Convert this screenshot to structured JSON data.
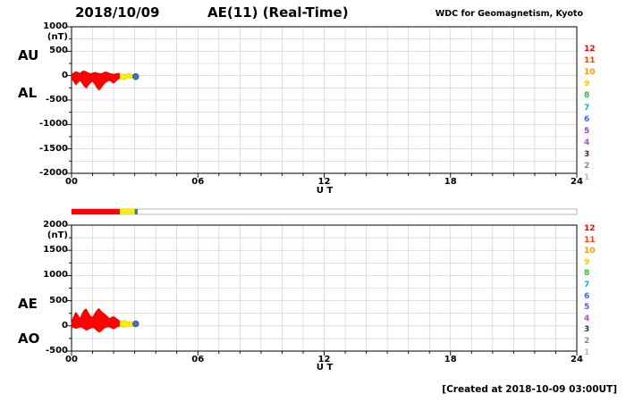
{
  "header": {
    "date": "2018/10/09",
    "title": "AE(11) (Real-Time)",
    "credit": "WDC for Geomagnetism, Kyoto"
  },
  "footer": {
    "created": "[Created at 2018-10-09 03:00UT]"
  },
  "panels": {
    "top": {
      "label_upper": "AU",
      "label_lower": "AL",
      "unit": "(nT)",
      "yticks": [
        "1000",
        "500",
        "0",
        "-500",
        "-1000",
        "-1500",
        "-2000"
      ],
      "ytick_values": [
        1000,
        500,
        0,
        -500,
        -1000,
        -1500,
        -2000
      ]
    },
    "bottom": {
      "label_upper": "AE",
      "label_lower": "AO",
      "unit": "(nT)",
      "yticks": [
        "2000",
        "1500",
        "1000",
        "500",
        "0",
        "-500"
      ],
      "ytick_values": [
        2000,
        1500,
        1000,
        500,
        0,
        -500
      ]
    }
  },
  "xaxis": {
    "label": "U T",
    "ticks": [
      "00",
      "06",
      "12",
      "18",
      "24"
    ],
    "tick_values": [
      0,
      6,
      12,
      18,
      24
    ]
  },
  "stations": {
    "numbers": [
      "12",
      "11",
      "10",
      "9",
      "8",
      "7",
      "6",
      "5",
      "4",
      "3",
      "2",
      "1"
    ],
    "colors": [
      "#ff0000",
      "#ff4400",
      "#ff9900",
      "#ffcc00",
      "#33bb33",
      "#00bbcc",
      "#3366ff",
      "#8844cc",
      "#cc44cc",
      "#333333",
      "#888888",
      "#bbbbbb"
    ]
  },
  "chart_data": {
    "type": "area",
    "title": "AE(11) (Real-Time)",
    "date": "2018/10/09",
    "xlabel": "U T",
    "x_range_hours": [
      0,
      24
    ],
    "x_hours": [
      0,
      0.1,
      0.2,
      0.3,
      0.4,
      0.5,
      0.6,
      0.7,
      0.8,
      0.9,
      1.0,
      1.1,
      1.2,
      1.3,
      1.4,
      1.5,
      1.6,
      1.7,
      1.8,
      1.9,
      2.0,
      2.1,
      2.2,
      2.3,
      2.4,
      2.5,
      2.6,
      2.7,
      2.8,
      2.9,
      3.0
    ],
    "panel_top": {
      "ylim": [
        -2000,
        1000
      ],
      "series": [
        {
          "name": "AU",
          "values": [
            20,
            60,
            85,
            70,
            50,
            90,
            100,
            80,
            60,
            45,
            55,
            70,
            60,
            50,
            40,
            60,
            80,
            70,
            50,
            40,
            30,
            40,
            50,
            40,
            30,
            25,
            30,
            40,
            35,
            25,
            15
          ]
        },
        {
          "name": "AL",
          "values": [
            -60,
            -130,
            -190,
            -150,
            -100,
            -160,
            -220,
            -260,
            -200,
            -150,
            -120,
            -180,
            -250,
            -300,
            -260,
            -200,
            -150,
            -120,
            -100,
            -130,
            -160,
            -120,
            -80,
            -60,
            -70,
            -90,
            -60,
            -40,
            -50,
            -40,
            -30
          ]
        }
      ]
    },
    "panel_bottom": {
      "ylim": [
        -500,
        2000
      ],
      "series": [
        {
          "name": "AE",
          "values": [
            80,
            190,
            275,
            220,
            150,
            250,
            320,
            340,
            260,
            195,
            175,
            250,
            310,
            350,
            300,
            260,
            230,
            190,
            150,
            170,
            190,
            160,
            130,
            100,
            100,
            115,
            90,
            80,
            85,
            65,
            45
          ]
        },
        {
          "name": "AO",
          "values": [
            -20,
            -35,
            -52,
            -40,
            -25,
            -35,
            -60,
            -90,
            -70,
            -52,
            -32,
            -55,
            -95,
            -125,
            -110,
            -70,
            -35,
            -25,
            -25,
            -45,
            -65,
            -40,
            -15,
            -10,
            -20,
            -32,
            -15,
            0,
            -8,
            -8,
            -8
          ]
        }
      ]
    },
    "segment_colors": {
      "realtime": "#ff0000",
      "provisional": "#ffee00",
      "latest": "#4477aa"
    },
    "segments": {
      "red_hours": [
        0,
        2.3
      ],
      "yellow_hours": [
        2.3,
        3.0
      ]
    },
    "latest_dot": {
      "hour": 3.05,
      "top_panel_value": -20,
      "bottom_panel_value": 40
    },
    "availability_bar": {
      "red": [
        0,
        2.3
      ],
      "yellow": [
        2.3,
        3.0
      ],
      "blue": [
        3.0,
        3.14
      ]
    },
    "grid": {
      "x_step_hours": 1,
      "y_step_nT": 250,
      "on": true
    },
    "legend_station_numbers": [
      12,
      11,
      10,
      9,
      8,
      7,
      6,
      5,
      4,
      3,
      2,
      1
    ]
  }
}
